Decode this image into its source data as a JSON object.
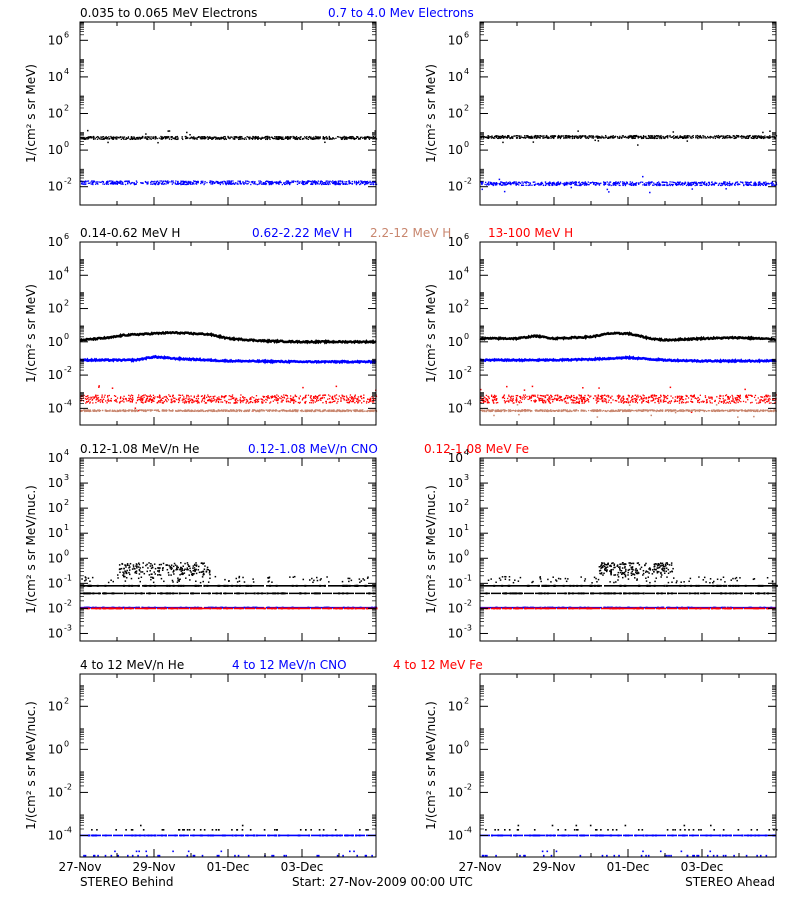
{
  "colors": {
    "black": "#000000",
    "blue": "#0000ff",
    "tan": "#c8866e",
    "red": "#ff0000"
  },
  "footer": {
    "left": "STEREO Behind",
    "center": "Start: 27-Nov-2009 00:00 UTC",
    "right": "STEREO Ahead"
  },
  "chart_data": [
    {
      "type": "scatter",
      "row": 1,
      "log_y": true,
      "ylabel": "1/(cm² s sr MeV)",
      "ylim_exp": [
        -3,
        7
      ],
      "ytick_exps": [
        -2,
        0,
        2,
        4,
        6
      ],
      "xlim_days": [
        0,
        8
      ],
      "xticks": [
        "27-Nov",
        "29-Nov",
        "01-Dec",
        "03-Dec"
      ],
      "legend": [
        {
          "text": "0.035 to 0.065 MeV Electrons",
          "color": "#000000"
        },
        {
          "text": "0.7 to 4.0 Mev Electrons",
          "color": "#0000ff"
        }
      ],
      "panels": [
        {
          "name": "STEREO Behind",
          "series": [
            {
              "color": "#000000",
              "base": 0.7,
              "noise": 0.08,
              "width": 2.2
            },
            {
              "color": "#0000ff",
              "base": -1.75,
              "noise": 0.1,
              "width": 2.5
            }
          ]
        },
        {
          "name": "STEREO Ahead",
          "series": [
            {
              "color": "#000000",
              "base": 0.75,
              "noise": 0.08,
              "width": 2.2
            },
            {
              "color": "#0000ff",
              "base": -1.8,
              "noise": 0.1,
              "width": 2.5
            }
          ]
        }
      ]
    },
    {
      "type": "line",
      "row": 2,
      "log_y": true,
      "ylabel": "1/(cm² s sr MeV)",
      "ylim_exp": [
        -5,
        6
      ],
      "ytick_exps": [
        -4,
        -2,
        0,
        2,
        4,
        6
      ],
      "xlim_days": [
        0,
        8
      ],
      "xticks": [
        "27-Nov",
        "29-Nov",
        "01-Dec",
        "03-Dec"
      ],
      "legend": [
        {
          "text": "0.14-0.62 MeV H",
          "color": "#000000"
        },
        {
          "text": "0.62-2.22 MeV H",
          "color": "#0000ff"
        },
        {
          "text": "2.2-12 MeV H",
          "color": "#c8866e"
        },
        {
          "text": "13-100 MeV H",
          "color": "#ff0000"
        }
      ],
      "panels": [
        {
          "name": "STEREO Behind",
          "series": [
            {
              "color": "#000000",
              "points": [
                [
                  0,
                  0.1
                ],
                [
                  0.8,
                  0.25
                ],
                [
                  1.2,
                  0.4
                ],
                [
                  2,
                  0.5
                ],
                [
                  2.5,
                  0.55
                ],
                [
                  3,
                  0.5
                ],
                [
                  3.5,
                  0.45
                ],
                [
                  4,
                  0.2
                ],
                [
                  5,
                  0.05
                ],
                [
                  6,
                  0.0
                ],
                [
                  7,
                  0.0
                ],
                [
                  8,
                  0.0
                ]
              ]
            },
            {
              "color": "#0000ff",
              "points": [
                [
                  0,
                  -1.1
                ],
                [
                  1.5,
                  -1.1
                ],
                [
                  2,
                  -0.9
                ],
                [
                  2.5,
                  -1.0
                ],
                [
                  4,
                  -1.15
                ],
                [
                  6,
                  -1.2
                ],
                [
                  8,
                  -1.2
                ]
              ]
            },
            {
              "color": "#ff0000",
              "base": -3.4,
              "noise": 0.25,
              "width": 3
            },
            {
              "color": "#c8866e",
              "base": -4.1,
              "noise": 0.05,
              "width": 1
            }
          ]
        },
        {
          "name": "STEREO Ahead",
          "series": [
            {
              "color": "#000000",
              "points": [
                [
                  0,
                  0.2
                ],
                [
                  1,
                  0.2
                ],
                [
                  1.5,
                  0.35
                ],
                [
                  2,
                  0.2
                ],
                [
                  3,
                  0.3
                ],
                [
                  3.5,
                  0.5
                ],
                [
                  4,
                  0.5
                ],
                [
                  4.6,
                  0.2
                ],
                [
                  5,
                  0.1
                ],
                [
                  6,
                  0.2
                ],
                [
                  7,
                  0.25
                ],
                [
                  8,
                  0.15
                ]
              ]
            },
            {
              "color": "#0000ff",
              "points": [
                [
                  0,
                  -1.1
                ],
                [
                  2,
                  -1.1
                ],
                [
                  3,
                  -1.05
                ],
                [
                  4,
                  -0.95
                ],
                [
                  5,
                  -1.1
                ],
                [
                  6,
                  -1.15
                ],
                [
                  8,
                  -1.15
                ]
              ]
            },
            {
              "color": "#ff0000",
              "base": -3.4,
              "noise": 0.25,
              "width": 3
            },
            {
              "color": "#c8866e",
              "base": -4.1,
              "noise": 0.05,
              "width": 1
            }
          ]
        }
      ]
    },
    {
      "type": "scatter",
      "row": 3,
      "log_y": true,
      "ylabel": "1/(cm² s sr MeV/nuc.)",
      "ylim_exp": [
        -3.3,
        4
      ],
      "ytick_exps": [
        -3,
        -2,
        -1,
        0,
        1,
        2,
        3,
        4
      ],
      "xlim_days": [
        0,
        8
      ],
      "xticks": [
        "27-Nov",
        "29-Nov",
        "01-Dec",
        "03-Dec"
      ],
      "legend": [
        {
          "text": "0.12-1.08 MeV/n He",
          "color": "#000000"
        },
        {
          "text": "0.12-1.08 MeV/n CNO",
          "color": "#0000ff"
        },
        {
          "text": "0.12-1.08 MeV Fe",
          "color": "#ff0000"
        }
      ],
      "panels": [
        {
          "name": "STEREO Behind",
          "series": [
            {
              "color": "#000000",
              "line": -1.1,
              "scatter_hi": [
                [
                  1,
                  3.5,
                  -0.4
                ]
              ]
            },
            {
              "color": "#000000",
              "line": -1.4
            },
            {
              "color": "#0000ff",
              "line": -1.97
            },
            {
              "color": "#ff0000",
              "line": -2.0
            }
          ]
        },
        {
          "name": "STEREO Ahead",
          "series": [
            {
              "color": "#000000",
              "line": -1.1,
              "scatter_hi": [
                [
                  3.2,
                  5.2,
                  -0.4
                ]
              ]
            },
            {
              "color": "#000000",
              "line": -1.4
            },
            {
              "color": "#0000ff",
              "line": -1.97
            },
            {
              "color": "#ff0000",
              "line": -2.0
            }
          ]
        }
      ]
    },
    {
      "type": "scatter",
      "row": 4,
      "log_y": true,
      "ylabel": "1/(cm² s sr MeV/nuc.)",
      "ylim_exp": [
        -5,
        3.5
      ],
      "ytick_exps": [
        -4,
        -2,
        0,
        2
      ],
      "xlim_days": [
        0,
        8
      ],
      "xticks": [
        "27-Nov",
        "29-Nov",
        "01-Dec",
        "03-Dec"
      ],
      "legend": [
        {
          "text": "4 to 12 MeV/n He",
          "color": "#000000"
        },
        {
          "text": "4 to 12 MeV/n CNO",
          "color": "#0000ff"
        },
        {
          "text": "4 to 12 MeV Fe",
          "color": "#ff0000"
        }
      ],
      "panels": [
        {
          "name": "STEREO Behind",
          "series": [
            {
              "color": "#000000",
              "sparse": -3.7
            },
            {
              "color": "#0000ff",
              "line": -4.0
            },
            {
              "color": "#0000ff",
              "sparse": -4.9
            }
          ]
        },
        {
          "name": "STEREO Ahead",
          "series": [
            {
              "color": "#000000",
              "sparse": -3.7
            },
            {
              "color": "#0000ff",
              "line": -4.0
            },
            {
              "color": "#0000ff",
              "sparse": -4.9
            }
          ]
        }
      ]
    }
  ]
}
